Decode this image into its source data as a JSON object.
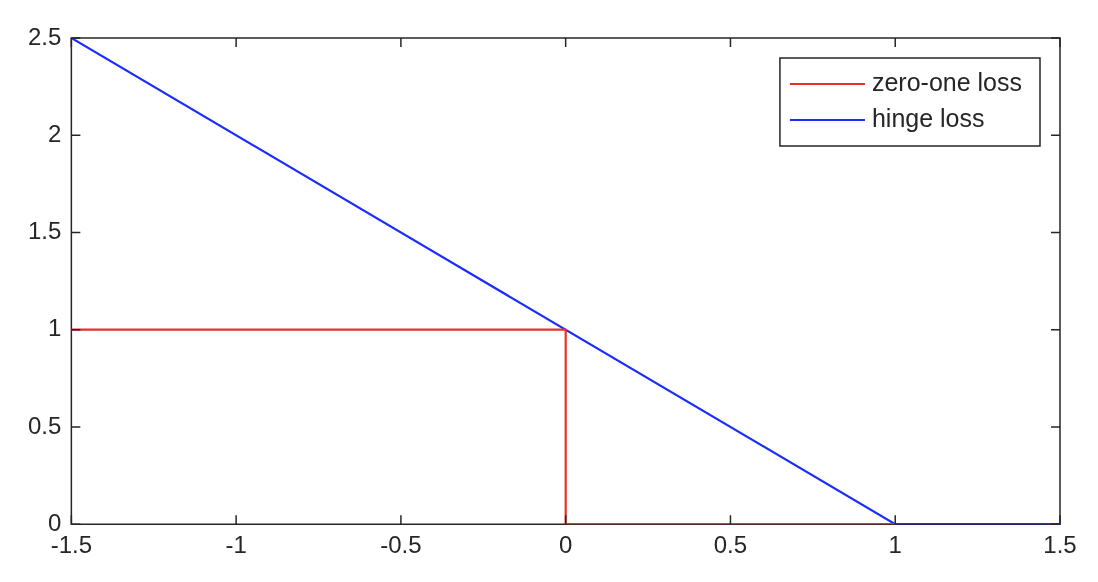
{
  "chart_data": {
    "type": "line",
    "xlim": [
      -1.5,
      1.5
    ],
    "xticks": [
      -1.5,
      -1,
      -0.5,
      0,
      0.5,
      1,
      1.5
    ],
    "ylim": [
      0,
      2.5
    ],
    "yticks": [
      0,
      0.5,
      1,
      1.5,
      2,
      2.5
    ],
    "grid": false,
    "legend": "top right",
    "marker": "none",
    "line_style": "solid",
    "series": [
      {
        "name": "zero-one loss",
        "color": "#e8302a",
        "x": [
          -1.5,
          0,
          0,
          1
        ],
        "values": [
          1,
          1,
          0,
          0
        ]
      },
      {
        "name": "hinge loss",
        "color": "#1a2cff",
        "x": [
          -1.5,
          1,
          1.5
        ],
        "values": [
          2.5,
          0,
          0
        ]
      }
    ]
  }
}
